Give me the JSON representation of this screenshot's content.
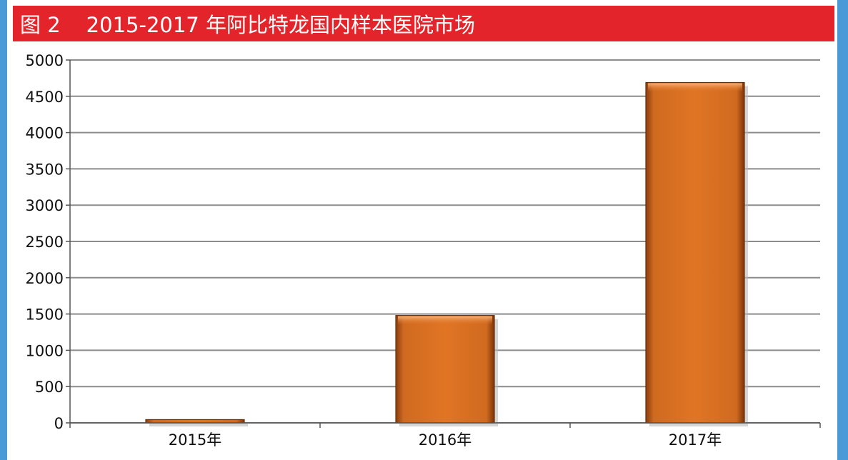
{
  "title": {
    "figure_label": "图 2",
    "text": "2015-2017 年阿比特龙国内样本医院市场"
  },
  "colors": {
    "title_bar": "#e3252b",
    "frame": "#4a9ad8",
    "bar": "#e07524",
    "gridline": "#8c8c8c"
  },
  "chart_data": {
    "type": "bar",
    "categories": [
      "2015年",
      "2016年",
      "2017年"
    ],
    "values": [
      45,
      1480,
      4690
    ],
    "ylim": [
      0,
      5000
    ],
    "yticks": [
      0,
      500,
      1000,
      1500,
      2000,
      2500,
      3000,
      3500,
      4000,
      4500,
      5000
    ],
    "grid": true,
    "legend": "none"
  }
}
